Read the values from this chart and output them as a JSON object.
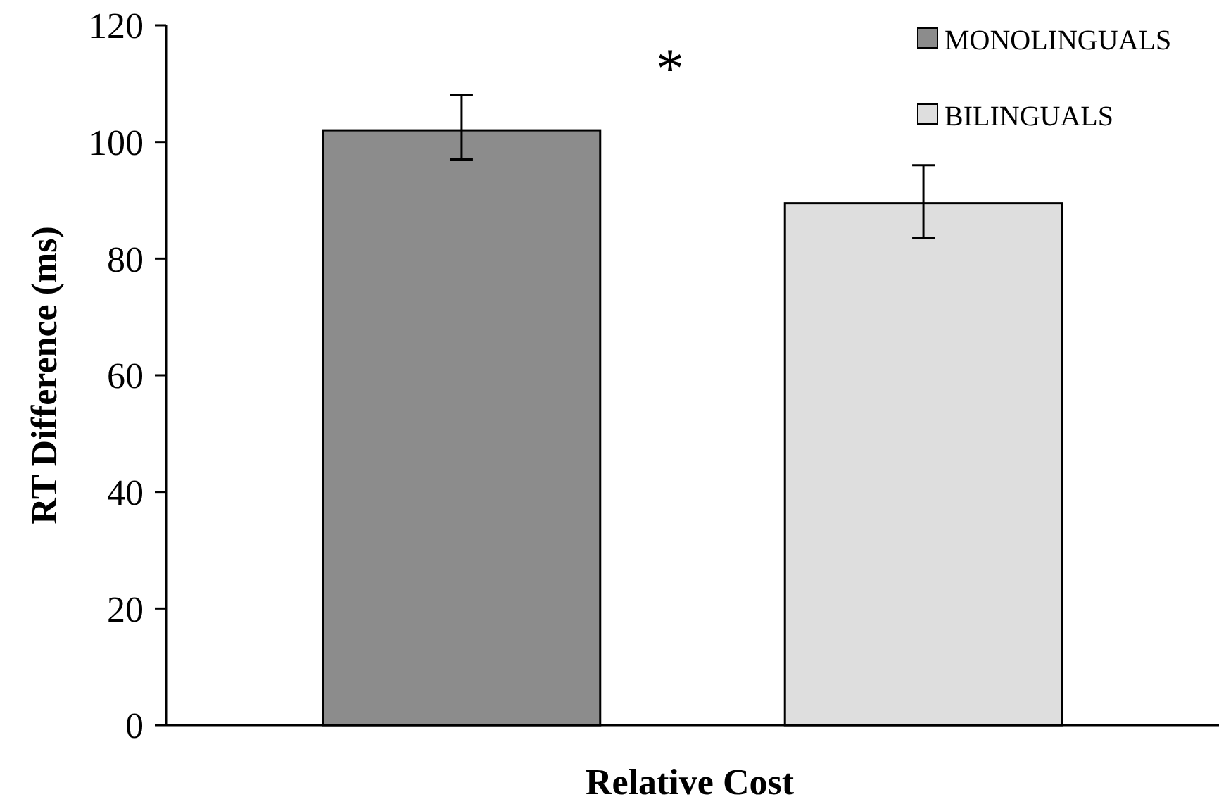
{
  "chart_data": {
    "type": "bar",
    "xlabel": "Relative Cost",
    "ylabel": "RT Difference  (ms)",
    "categories": [
      null
    ],
    "series": [
      {
        "name": "MONOLINGUALS",
        "color": "#8c8c8c",
        "values": [
          102
        ],
        "errors": [
          [
            97,
            108
          ]
        ]
      },
      {
        "name": "BILINGUALS",
        "color": "#dedede",
        "values": [
          89.5
        ],
        "errors": [
          [
            83.5,
            96
          ]
        ]
      }
    ],
    "ylim": [
      0,
      120
    ],
    "yticks": [
      0,
      20,
      40,
      60,
      80,
      100,
      120
    ],
    "grid": false,
    "legend": "top right",
    "annotations": [
      "*"
    ]
  }
}
